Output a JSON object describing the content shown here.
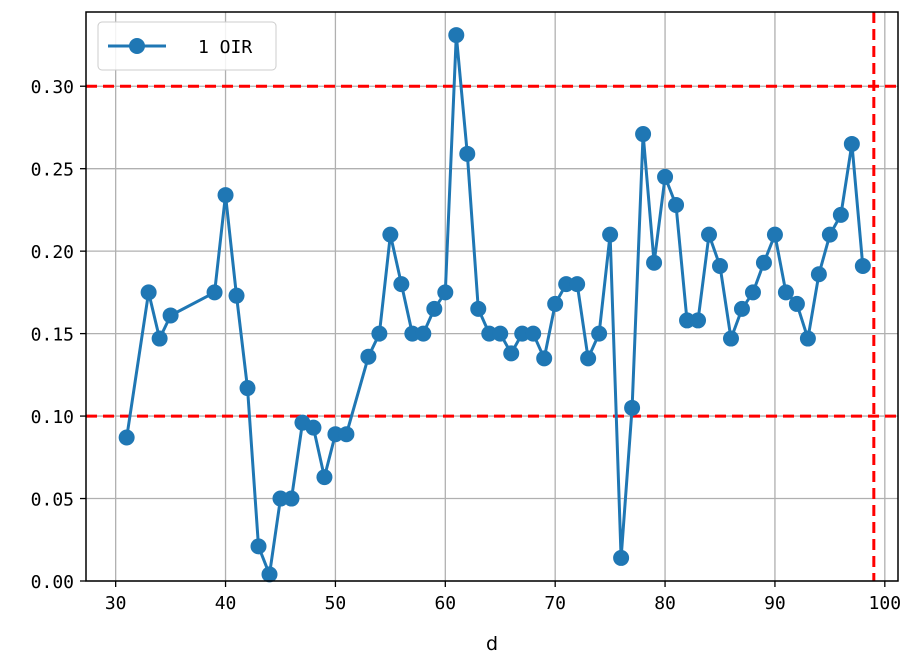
{
  "chart_data": {
    "type": "line",
    "xlabel": "d",
    "ylabel": "",
    "xlim": [
      27.3,
      101.2
    ],
    "ylim": [
      0.0,
      0.345
    ],
    "xticks": [
      30,
      40,
      50,
      60,
      70,
      80,
      90,
      100
    ],
    "xtick_labels": [
      "30",
      "40",
      "50",
      "60",
      "70",
      "80",
      "90",
      "100"
    ],
    "yticks": [
      0.0,
      0.05,
      0.1,
      0.15,
      0.2,
      0.25,
      0.3
    ],
    "ytick_labels": [
      "0.00",
      "0.05",
      "0.10",
      "0.15",
      "0.20",
      "0.25",
      "0.30"
    ],
    "grid": true,
    "legend_position": "top-left",
    "series": [
      {
        "name": "1 OIR",
        "color": "#1f77b4",
        "marker": "circle",
        "x": [
          31,
          33,
          34,
          35,
          39,
          40,
          41,
          42,
          43,
          44,
          45,
          46,
          47,
          48,
          49,
          50,
          51,
          53,
          54,
          55,
          56,
          57,
          58,
          59,
          60,
          61,
          62,
          63,
          64,
          65,
          66,
          67,
          68,
          69,
          70,
          71,
          72,
          73,
          74,
          75,
          76,
          77,
          78,
          79,
          80,
          81,
          82,
          83,
          84,
          85,
          86,
          87,
          88,
          89,
          90,
          91,
          92,
          93,
          94,
          95,
          96,
          97,
          98
        ],
        "y": [
          0.087,
          0.175,
          0.147,
          0.161,
          0.175,
          0.234,
          0.173,
          0.117,
          0.021,
          0.004,
          0.05,
          0.05,
          0.096,
          0.093,
          0.063,
          0.089,
          0.089,
          0.136,
          0.15,
          0.21,
          0.18,
          0.15,
          0.15,
          0.165,
          0.175,
          0.331,
          0.259,
          0.165,
          0.15,
          0.15,
          0.138,
          0.15,
          0.15,
          0.135,
          0.168,
          0.18,
          0.18,
          0.135,
          0.15,
          0.21,
          0.014,
          0.105,
          0.271,
          0.193,
          0.245,
          0.228,
          0.158,
          0.158,
          0.21,
          0.191,
          0.147,
          0.165,
          0.175,
          0.193,
          0.21,
          0.175,
          0.168,
          0.147,
          0.186,
          0.21,
          0.222,
          0.265,
          0.191
        ]
      }
    ],
    "reference_lines": [
      {
        "orientation": "horizontal",
        "value": 0.3,
        "color": "#ff0000",
        "style": "dashed"
      },
      {
        "orientation": "horizontal",
        "value": 0.1,
        "color": "#ff0000",
        "style": "dashed"
      },
      {
        "orientation": "vertical",
        "value": 99,
        "color": "#ff0000",
        "style": "dashed"
      }
    ]
  }
}
